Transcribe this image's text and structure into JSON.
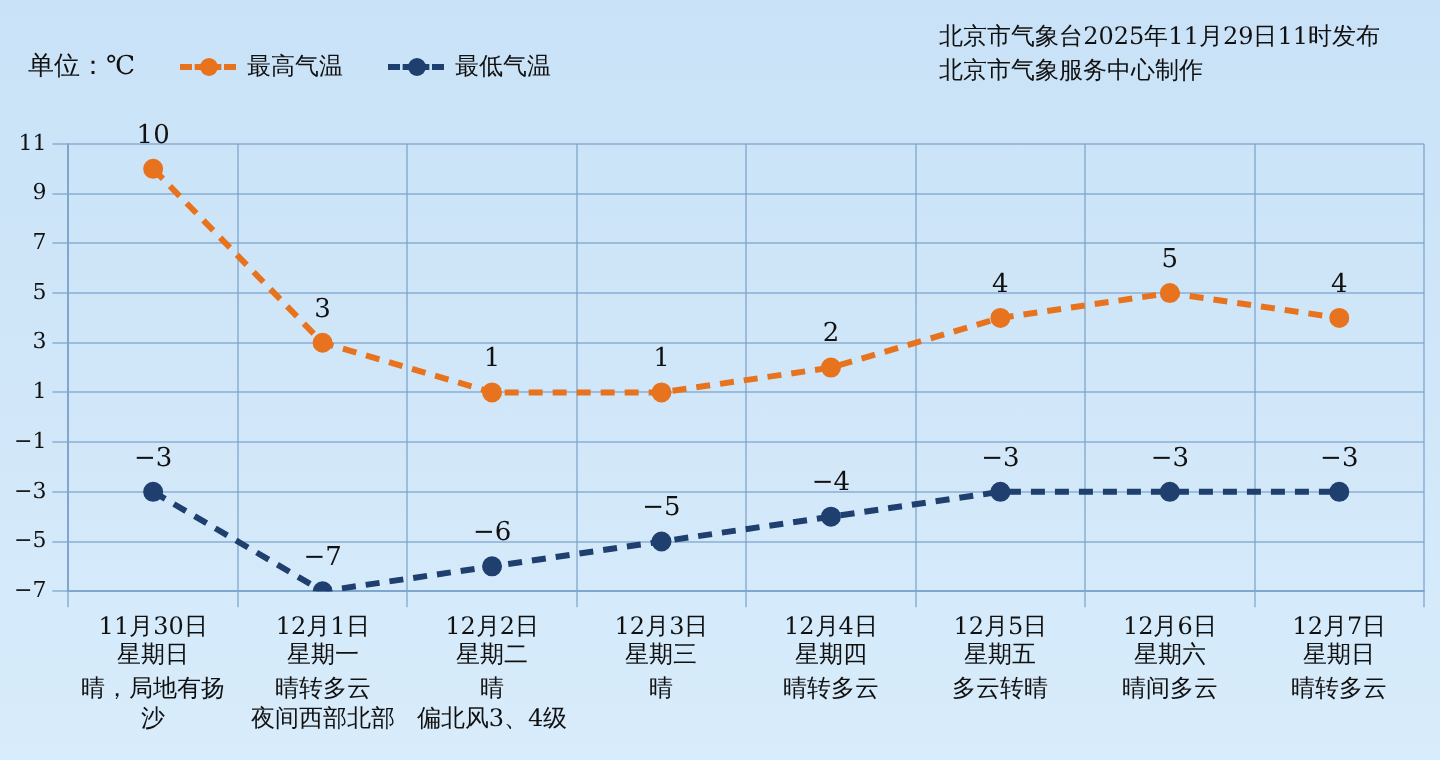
{
  "chart_data": {
    "type": "line",
    "ylabel": "单位：℃",
    "annotations": [
      "北京市气象台2025年11月29日11时发布",
      "北京市气象服务中心制作",
      "星期日",
      "星期一",
      "星期二",
      "星期三",
      "星期四",
      "星期五",
      "星期六",
      "星期日",
      "晴，局地有扬沙",
      "晴转多云",
      "晴",
      "晴",
      "晴转多云",
      "多云转晴",
      "晴间多云",
      "晴转多云",
      "夜间西部北部",
      "偏北风3、4级"
    ],
    "categories": [
      "11月30日",
      "12月1日",
      "12月2日",
      "12月3日",
      "12月4日",
      "12月5日",
      "12月6日",
      "12月7日"
    ],
    "series": [
      {
        "name": "最高气温",
        "color": "#e8731e",
        "values": [
          10,
          3,
          1,
          1,
          2,
          4,
          5,
          4
        ]
      },
      {
        "name": "最低气温",
        "color": "#1f3f6e",
        "values": [
          -3,
          -7,
          -6,
          -5,
          -4,
          -3,
          -3,
          -3
        ]
      }
    ],
    "ylim": [
      -7,
      11
    ],
    "yticks": [
      -7,
      -5,
      -3,
      -1,
      1,
      3,
      5,
      7,
      9,
      11
    ],
    "grid": true,
    "legend": "top left",
    "marker": "circle",
    "line_style": "dashed",
    "data_labels": true
  }
}
